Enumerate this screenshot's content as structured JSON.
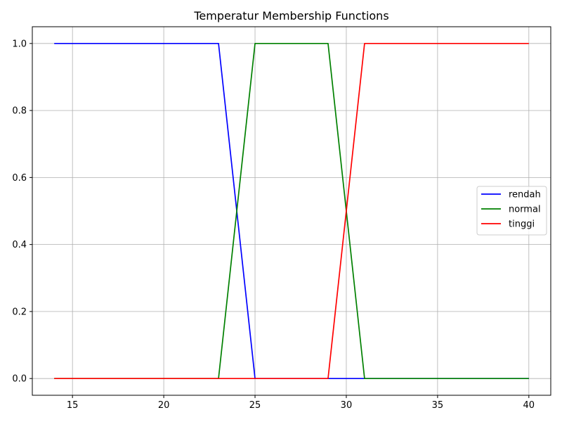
{
  "chart_data": {
    "type": "line",
    "title": "Temperatur Membership Functions",
    "xlabel": "",
    "ylabel": "",
    "xlim": [
      12.8,
      41.2
    ],
    "ylim": [
      -0.05,
      1.05
    ],
    "xticks": [
      15,
      20,
      25,
      30,
      35,
      40
    ],
    "yticks": [
      0.0,
      0.2,
      0.4,
      0.6,
      0.8,
      1.0
    ],
    "xtick_labels": [
      "15",
      "20",
      "25",
      "30",
      "35",
      "40"
    ],
    "ytick_labels": [
      "0.0",
      "0.2",
      "0.4",
      "0.6",
      "0.8",
      "1.0"
    ],
    "grid": true,
    "legend_position": "center-right",
    "series": [
      {
        "name": "rendah",
        "color": "#0000ff",
        "x": [
          14,
          23,
          25,
          40
        ],
        "y": [
          1,
          1,
          0,
          0
        ]
      },
      {
        "name": "normal",
        "color": "#008000",
        "x": [
          14,
          23,
          25,
          29,
          31,
          40
        ],
        "y": [
          0,
          0,
          1,
          1,
          0,
          0
        ]
      },
      {
        "name": "tinggi",
        "color": "#ff0000",
        "x": [
          14,
          29,
          31,
          40
        ],
        "y": [
          0,
          0,
          1,
          1
        ]
      }
    ]
  }
}
